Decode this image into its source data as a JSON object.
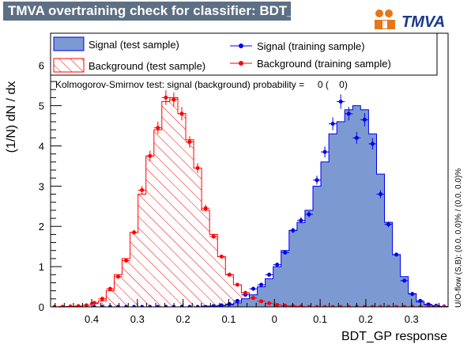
{
  "title": "TMVA overtraining check for classifier: BDT_GP",
  "logo": {
    "text": "TMVA",
    "icon": "tmva-logo-icon",
    "accent": "#e8751a"
  },
  "ks_text": "Kolmogorov-Smirnov test: signal (background) probability =     0 (    0)",
  "overflow_text": "U/O-flow (S,B): (0.0, 0.0)% / (0.0, 0.0)%",
  "colors": {
    "signal_fill": "#7d99d1",
    "signal_line": "#0000ee",
    "signal_points": "#0000ee",
    "background_hatch": "#ff0000",
    "background_points": "#ff0000"
  },
  "legend": [
    {
      "label": "Signal (test sample)",
      "style": "signal-fill"
    },
    {
      "label": "Signal (training sample)",
      "style": "signal-points"
    },
    {
      "label": "Background (test sample)",
      "style": "background-hatch"
    },
    {
      "label": "Background (training sample)",
      "style": "background-points"
    }
  ],
  "chart_data": {
    "type": "histogram",
    "title": "TMVA overtraining check for classifier: BDT_GP",
    "xlabel": "BDT_GP response",
    "ylabel": "(1/N) dN / dx",
    "xlim": [
      -0.49,
      0.38
    ],
    "ylim": [
      0,
      6.8
    ],
    "xticks": [
      -0.4,
      -0.3,
      -0.2,
      -0.1,
      0,
      0.1,
      0.2,
      0.3
    ],
    "xtick_labels": [
      "0.4",
      "0.3",
      "0.2",
      "0.1",
      "0",
      "0.1",
      "0.2",
      "0.3"
    ],
    "yticks": [
      0,
      1,
      2,
      3,
      4,
      5,
      6
    ],
    "bin_edges": [
      -0.49,
      -0.4726,
      -0.4552,
      -0.4378,
      -0.4204,
      -0.403,
      -0.3856,
      -0.3682,
      -0.3508,
      -0.3334,
      -0.316,
      -0.2986,
      -0.2812,
      -0.2638,
      -0.2464,
      -0.229,
      -0.2116,
      -0.1942,
      -0.1768,
      -0.1594,
      -0.142,
      -0.1246,
      -0.1072,
      -0.0898,
      -0.0724,
      -0.055,
      -0.0376,
      -0.0202,
      -0.0028,
      0.0146,
      0.032,
      0.0494,
      0.0668,
      0.0842,
      0.1016,
      0.119,
      0.1364,
      0.1538,
      0.1712,
      0.1886,
      0.206,
      0.2234,
      0.2408,
      0.2582,
      0.2756,
      0.293,
      0.3104,
      0.3278,
      0.3452,
      0.3626,
      0.38
    ],
    "series": [
      {
        "name": "Signal (test sample)",
        "values": [
          0,
          0,
          0,
          0,
          0,
          0,
          0,
          0,
          0,
          0,
          0,
          0,
          0,
          0,
          0,
          0,
          0,
          0,
          0,
          0.02,
          0.02,
          0.03,
          0.05,
          0.1,
          0.2,
          0.3,
          0.5,
          0.7,
          1.0,
          1.4,
          1.9,
          2.1,
          2.4,
          3.0,
          3.6,
          4.3,
          4.6,
          4.9,
          5.0,
          4.9,
          4.3,
          3.3,
          2.1,
          1.3,
          0.75,
          0.33,
          0.12,
          0.05,
          0.02,
          0
        ]
      },
      {
        "name": "Signal (training sample)",
        "values": [
          0,
          0,
          0,
          0,
          0,
          0,
          0,
          0,
          0,
          0,
          0,
          0,
          0,
          0,
          0,
          0,
          0,
          0,
          0,
          0,
          0.02,
          0.04,
          0.07,
          0.15,
          0.3,
          0.45,
          0.55,
          0.8,
          1.05,
          1.35,
          1.9,
          2.15,
          2.3,
          3.15,
          3.85,
          4.55,
          5.1,
          4.8,
          4.2,
          4.65,
          4.05,
          2.8,
          2.05,
          1.3,
          0.65,
          0.32,
          0.15,
          0.06,
          0.03,
          0.01
        ]
      },
      {
        "name": "Background (test sample)",
        "values": [
          0,
          0.01,
          0.01,
          0.02,
          0.04,
          0.08,
          0.15,
          0.4,
          0.8,
          1.2,
          1.85,
          2.8,
          3.75,
          4.4,
          5.1,
          5.2,
          4.8,
          4.15,
          3.45,
          2.4,
          1.8,
          1.25,
          0.8,
          0.55,
          0.35,
          0.25,
          0.15,
          0.1,
          0.06,
          0.03,
          0.02,
          0.01,
          0.01,
          0,
          0,
          0,
          0,
          0,
          0,
          0,
          0,
          0,
          0,
          0,
          0,
          0,
          0,
          0,
          0,
          0
        ]
      },
      {
        "name": "Background (training sample)",
        "values": [
          0,
          0,
          0.01,
          0.02,
          0.04,
          0.1,
          0.2,
          0.45,
          0.75,
          1.15,
          1.85,
          2.9,
          3.75,
          4.45,
          5.2,
          5.15,
          4.8,
          4.1,
          3.45,
          2.45,
          1.75,
          1.25,
          0.8,
          0.55,
          0.35,
          0.22,
          0.14,
          0.09,
          0.05,
          0.03,
          0.02,
          0.01,
          0,
          0,
          0,
          0,
          0,
          0,
          0,
          0,
          0,
          0,
          0,
          0,
          0,
          0,
          0,
          0,
          0,
          0
        ]
      }
    ],
    "grid": false,
    "legend_position": "top"
  }
}
